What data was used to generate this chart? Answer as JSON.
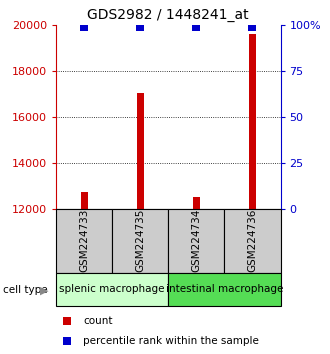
{
  "title": "GDS2982 / 1448241_at",
  "samples": [
    "GSM224733",
    "GSM224735",
    "GSM224734",
    "GSM224736"
  ],
  "counts": [
    12750,
    17050,
    12500,
    19600
  ],
  "percentiles": [
    99,
    99,
    99,
    99
  ],
  "ylim_left": [
    12000,
    20000
  ],
  "ylim_right": [
    0,
    100
  ],
  "yticks_left": [
    12000,
    14000,
    16000,
    18000,
    20000
  ],
  "yticks_right": [
    0,
    25,
    50,
    75,
    100
  ],
  "ytick_labels_right": [
    "0",
    "25",
    "50",
    "75",
    "100%"
  ],
  "bar_color": "#cc0000",
  "percentile_color": "#0000cc",
  "grid_ticks": [
    14000,
    16000,
    18000
  ],
  "groups": [
    {
      "label": "splenic macrophage",
      "color": "#ccffcc",
      "indices": [
        0,
        1
      ]
    },
    {
      "label": "intestinal macrophage",
      "color": "#55dd55",
      "indices": [
        2,
        3
      ]
    }
  ],
  "sample_box_color": "#cccccc",
  "bar_width": 0.12,
  "percentile_marker_size": 6,
  "left_tick_color": "#cc0000",
  "right_tick_color": "#0000cc",
  "cell_type_label": "cell type",
  "legend_count_label": "count",
  "legend_percentile_label": "percentile rank within the sample",
  "title_fontsize": 10,
  "axis_fontsize": 8,
  "label_fontsize": 7.5
}
